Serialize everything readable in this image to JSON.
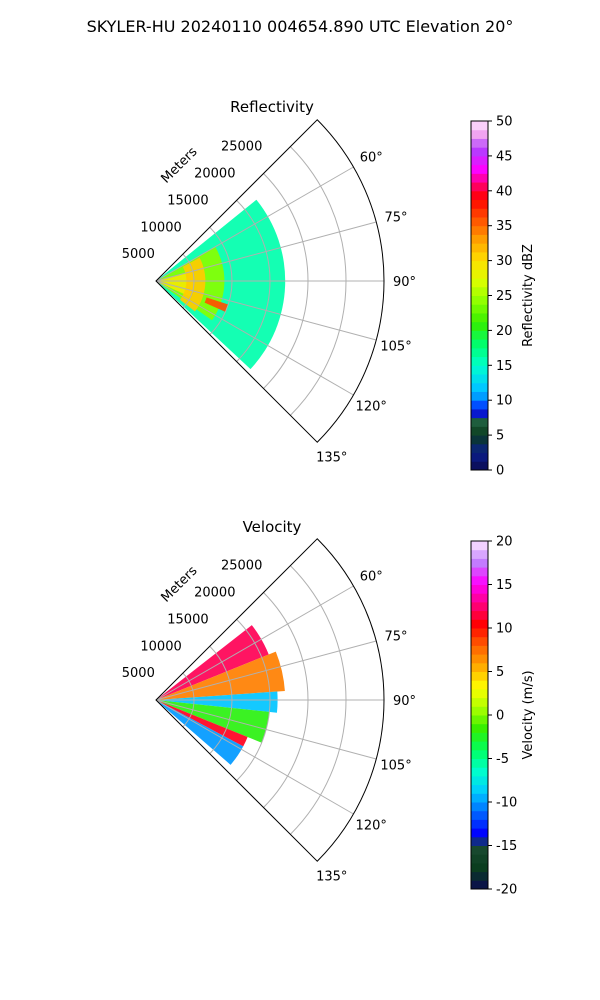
{
  "figure": {
    "title": "SKYLER-HU  20240110  004654.890 UTC Elevation 20°"
  },
  "chart_data": [
    {
      "type": "heatmap",
      "title": "Reflectivity",
      "radial_label": "Meters",
      "radial_ticks": [
        5000,
        10000,
        15000,
        20000,
        25000
      ],
      "radial_range": [
        0,
        30000
      ],
      "azimuth_range_deg": [
        45,
        135
      ],
      "azimuth_tick_labels": [
        "60°",
        "75°",
        "90°",
        "105°",
        "120°",
        "135°"
      ],
      "azimuth_ticks_deg": [
        60,
        75,
        90,
        105,
        120,
        135
      ],
      "grid": true,
      "colorbar": {
        "label": "Reflectivity dBZ",
        "range": [
          0,
          50
        ],
        "ticks": [
          0,
          5,
          10,
          15,
          20,
          25,
          30,
          35,
          40,
          45,
          50
        ]
      },
      "data_extent": {
        "azimuth_deg": [
          51,
          133
        ],
        "max_range_m": 17500
      },
      "regions": [
        {
          "az": [
            51,
            133
          ],
          "r": [
            0,
            17000
          ],
          "value": 16
        },
        {
          "az": [
            60,
            125
          ],
          "r": [
            0,
            9000
          ],
          "value": 24
        },
        {
          "az": [
            75,
            115
          ],
          "r": [
            0,
            5000
          ],
          "value": 29
        },
        {
          "az": [
            62,
            128
          ],
          "r": [
            4000,
            6500
          ],
          "value": 31
        },
        {
          "az": [
            108,
            114
          ],
          "r": [
            7000,
            10000
          ],
          "value": 36
        }
      ]
    },
    {
      "type": "heatmap",
      "title": "Velocity",
      "radial_label": "Meters",
      "radial_ticks": [
        5000,
        10000,
        15000,
        20000,
        25000
      ],
      "radial_range": [
        0,
        30000
      ],
      "azimuth_range_deg": [
        45,
        135
      ],
      "azimuth_tick_labels": [
        "60°",
        "75°",
        "90°",
        "105°",
        "120°",
        "135°"
      ],
      "azimuth_ticks_deg": [
        60,
        75,
        90,
        105,
        120,
        135
      ],
      "grid": true,
      "colorbar": {
        "label": "Velocity (m/s)",
        "range": [
          -20,
          20
        ],
        "ticks": [
          -20,
          -15,
          -10,
          -5,
          0,
          5,
          10,
          15,
          20
        ]
      },
      "data_extent": {
        "azimuth_deg": [
          52,
          131
        ],
        "max_range_m": 17500
      },
      "regions": [
        {
          "az": [
            52,
            68
          ],
          "r": [
            0,
            16000
          ],
          "value": 12
        },
        {
          "az": [
            68,
            86
          ],
          "r": [
            0,
            17000
          ],
          "value": 7
        },
        {
          "az": [
            86,
            96
          ],
          "r": [
            0,
            16000
          ],
          "value": -9
        },
        {
          "az": [
            96,
            112
          ],
          "r": [
            0,
            15000
          ],
          "value": -2
        },
        {
          "az": [
            112,
            118
          ],
          "r": [
            0,
            13000
          ],
          "value": 11
        },
        {
          "az": [
            118,
            131
          ],
          "r": [
            0,
            13000
          ],
          "value": -10
        }
      ]
    }
  ]
}
